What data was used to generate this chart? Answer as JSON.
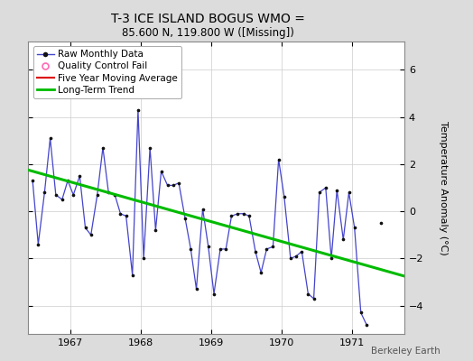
{
  "title": "T-3 ICE ISLAND BOGUS WMO =",
  "subtitle": "85.600 N, 119.800 W ([Missing])",
  "ylabel": "Temperature Anomaly (°C)",
  "credit": "Berkeley Earth",
  "background_color": "#dcdcdc",
  "plot_background": "#ffffff",
  "xlim": [
    1966.4,
    1971.75
  ],
  "ylim": [
    -5.2,
    7.2
  ],
  "yticks": [
    -4,
    -2,
    0,
    2,
    4,
    6
  ],
  "xticks": [
    1967,
    1968,
    1969,
    1970,
    1971
  ],
  "raw_x": [
    1966.46,
    1966.54,
    1966.63,
    1966.71,
    1966.79,
    1966.88,
    1966.96,
    1967.04,
    1967.13,
    1967.21,
    1967.29,
    1967.38,
    1967.46,
    1967.54,
    1967.63,
    1967.71,
    1967.79,
    1967.88,
    1967.96,
    1968.04,
    1968.13,
    1968.21,
    1968.29,
    1968.38,
    1968.46,
    1968.54,
    1968.63,
    1968.71,
    1968.79,
    1968.88,
    1968.96,
    1969.04,
    1969.13,
    1969.21,
    1969.29,
    1969.38,
    1969.46,
    1969.54,
    1969.63,
    1969.71,
    1969.79,
    1969.88,
    1969.96,
    1970.04,
    1970.13,
    1970.21,
    1970.29,
    1970.38,
    1970.46,
    1970.54,
    1970.63,
    1970.71,
    1970.79,
    1970.88,
    1970.96,
    1971.04,
    1971.13,
    1971.21
  ],
  "raw_y": [
    1.3,
    -1.4,
    0.8,
    3.1,
    0.7,
    0.5,
    1.3,
    0.7,
    1.5,
    -0.7,
    -1.0,
    0.7,
    2.7,
    0.8,
    0.7,
    -0.1,
    -0.2,
    -2.7,
    4.3,
    -2.0,
    2.7,
    -0.8,
    1.7,
    1.1,
    1.1,
    1.2,
    -0.3,
    -1.6,
    -3.3,
    0.1,
    -1.5,
    -3.5,
    -1.6,
    -1.6,
    -0.2,
    -0.1,
    -0.1,
    -0.2,
    -1.7,
    -2.6,
    -1.6,
    -1.5,
    2.2,
    0.6,
    -2.0,
    -1.9,
    -1.7,
    -3.5,
    -3.7,
    0.8,
    1.0,
    -2.0,
    0.9,
    -1.2,
    0.8,
    -0.7,
    -4.3,
    -4.8
  ],
  "isolated_x": 1971.42,
  "isolated_y": -0.5,
  "trend_x": [
    1966.4,
    1971.75
  ],
  "trend_y": [
    1.75,
    -2.75
  ],
  "line_color": "#4444cc",
  "marker_color": "#111111",
  "trend_color": "#00bb00",
  "qc_marker_color": "#ff69b4",
  "moving_avg_color": "#dd0000",
  "title_fontsize": 10,
  "subtitle_fontsize": 8.5,
  "tick_fontsize": 8,
  "legend_fontsize": 7.5,
  "credit_fontsize": 7.5
}
